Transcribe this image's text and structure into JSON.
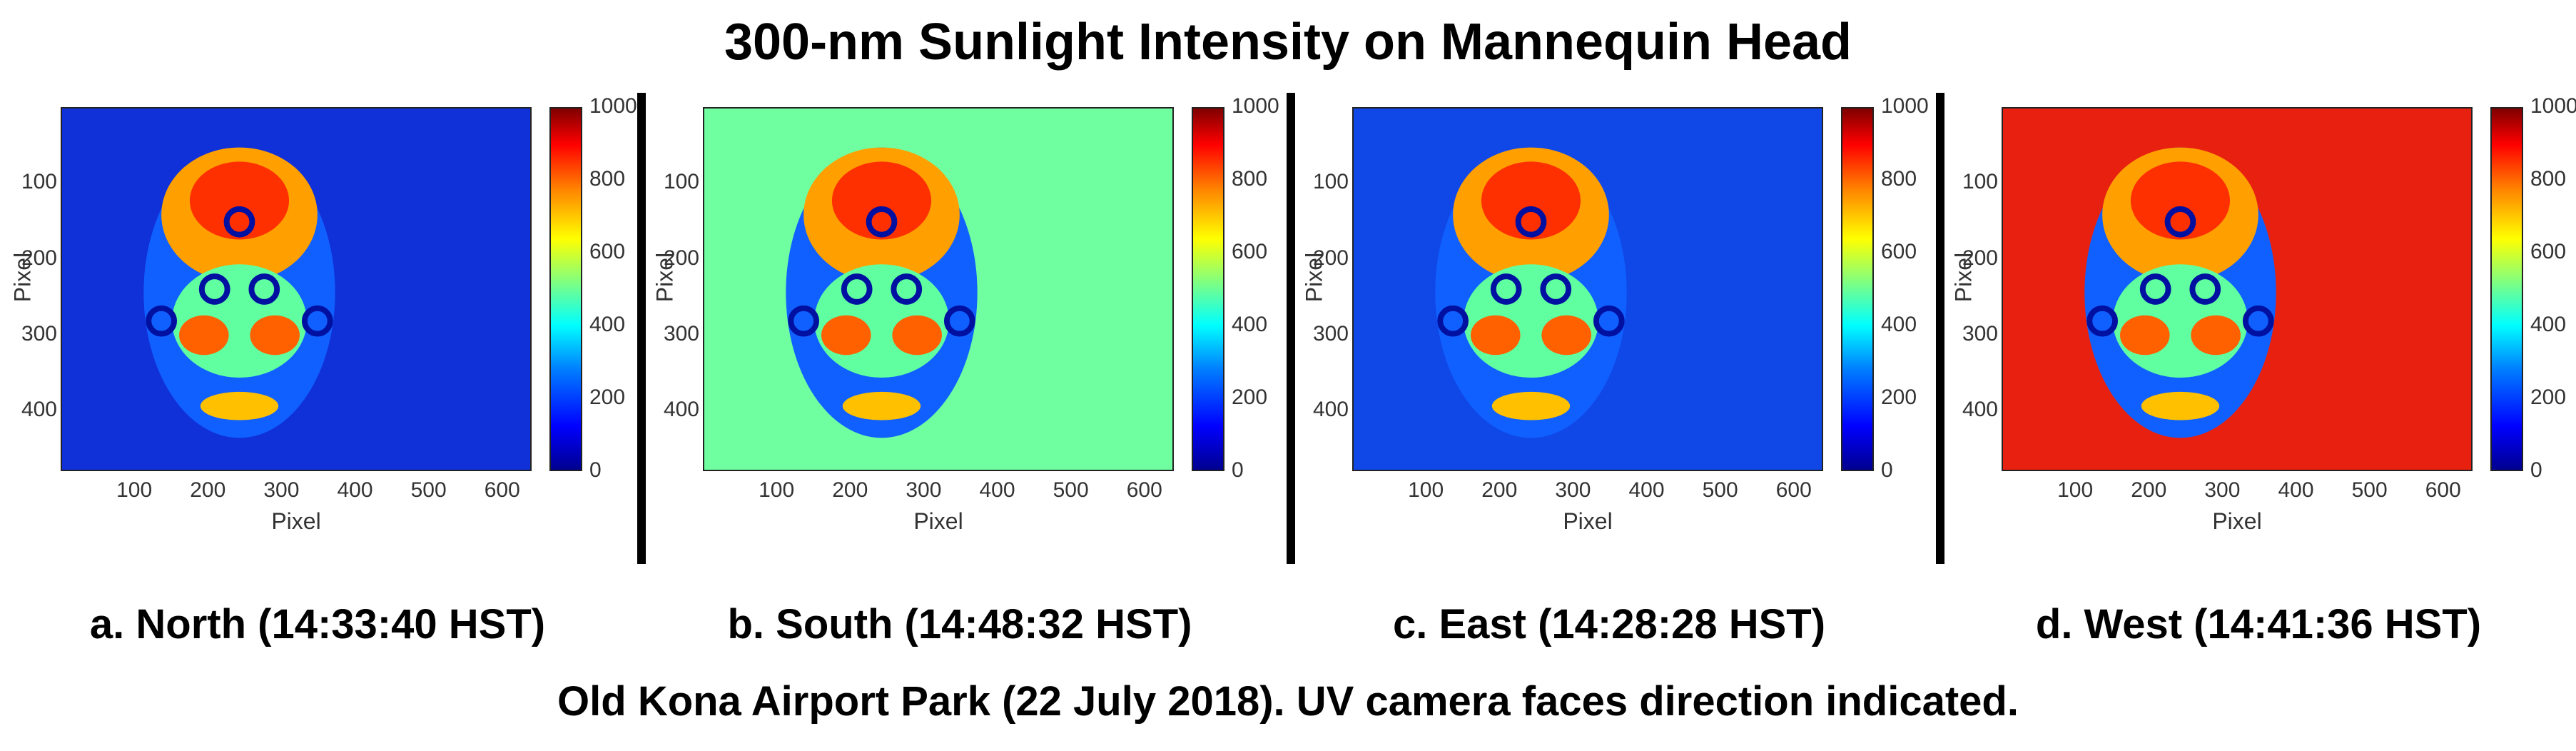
{
  "title": "300-nm Sunlight Intensity on Mannequin Head",
  "footer": "Old Kona Airport Park (22 July 2018). UV camera faces direction indicated.",
  "chart_data": [
    {
      "type": "heatmap",
      "caption": "a. North (14:33:40 HST)",
      "xlabel": "Pixel",
      "ylabel": "Pixel",
      "x_ticks": [
        "100",
        "200",
        "300",
        "400",
        "500",
        "600"
      ],
      "y_ticks": [
        "100",
        "200",
        "300",
        "400"
      ],
      "colorbar_ticks": [
        "0",
        "200",
        "400",
        "600",
        "800",
        "1000"
      ],
      "clim": [
        0,
        1000
      ],
      "background_level": 80,
      "background_color": "#1030d8"
    },
    {
      "type": "heatmap",
      "caption": "b. South (14:48:32 HST)",
      "xlabel": "Pixel",
      "ylabel": "Pixel",
      "x_ticks": [
        "100",
        "200",
        "300",
        "400",
        "500",
        "600"
      ],
      "y_ticks": [
        "100",
        "200",
        "300",
        "400"
      ],
      "colorbar_ticks": [
        "0",
        "200",
        "400",
        "600",
        "800",
        "1000"
      ],
      "clim": [
        0,
        1000
      ],
      "background_level": 520,
      "background_color": "#70ffa0"
    },
    {
      "type": "heatmap",
      "caption": "c. East (14:28:28 HST)",
      "xlabel": "Pixel",
      "ylabel": "Pixel",
      "x_ticks": [
        "100",
        "200",
        "300",
        "400",
        "500",
        "600"
      ],
      "y_ticks": [
        "100",
        "200",
        "300",
        "400"
      ],
      "colorbar_ticks": [
        "0",
        "200",
        "400",
        "600",
        "800",
        "1000"
      ],
      "clim": [
        0,
        1000
      ],
      "background_level": 100,
      "background_color": "#1048e8"
    },
    {
      "type": "heatmap",
      "caption": "d. West (14:41:36 HST)",
      "xlabel": "Pixel",
      "ylabel": "Pixel",
      "x_ticks": [
        "100",
        "200",
        "300",
        "400",
        "500",
        "600"
      ],
      "y_ticks": [
        "100",
        "200",
        "300",
        "400"
      ],
      "colorbar_ticks": [
        "0",
        "200",
        "400",
        "600",
        "800",
        "1000"
      ],
      "clim": [
        0,
        1000
      ],
      "background_level": 920,
      "background_color": "#e82010"
    }
  ]
}
